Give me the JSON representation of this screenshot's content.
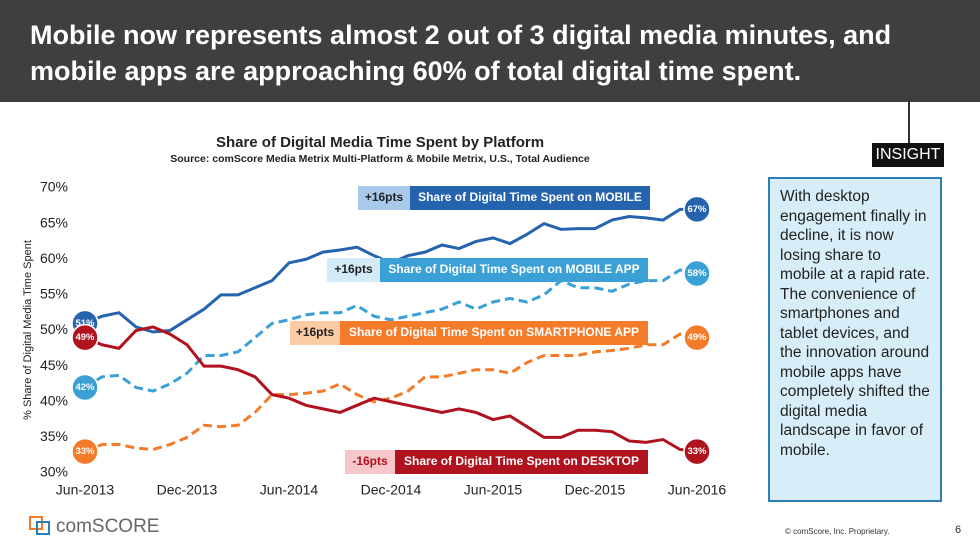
{
  "header": {
    "title_lines": [
      "Mobile now represents almost 2 out of 3 digital media minutes, and",
      "mobile apps are approaching 60% of total digital time spent."
    ]
  },
  "insight": {
    "tag": "INSIGHT",
    "text": "With desktop engagement finally in decline, it is now losing share to mobile at a rapid rate. The convenience of smartphones and tablet devices, and the innovation around mobile apps have completely shifted the digital media landscape in favor of mobile."
  },
  "footer": {
    "logo": "comSCORE",
    "copyright": "© comScore, Inc. Proprietary.",
    "page": "6"
  },
  "chart_data": {
    "type": "line",
    "title": "Share of Digital Media Time Spent by Platform",
    "subtitle": "Source: comScore Media Metrix Multi-Platform & Mobile Metrix, U.S., Total Audience",
    "y_label": "% Share of Digital Media Time Spent",
    "categories": [
      "Jun-2013",
      null,
      null,
      null,
      null,
      null,
      "Dec-2013",
      null,
      null,
      null,
      null,
      null,
      "Jun-2014",
      null,
      null,
      null,
      null,
      null,
      "Dec-2014",
      null,
      null,
      null,
      null,
      null,
      "Jun-2015",
      null,
      null,
      null,
      null,
      null,
      "Dec-2015",
      null,
      null,
      null,
      null,
      null,
      "Jun-2016"
    ],
    "ylim": [
      30,
      70
    ],
    "yticks": [
      {
        "value": 70,
        "label": "70%"
      },
      {
        "value": 65,
        "label": "65%"
      },
      {
        "value": 60,
        "label": "60%"
      },
      {
        "value": 55,
        "label": "55%"
      },
      {
        "value": 50,
        "label": "50%"
      },
      {
        "value": 45,
        "label": "45%"
      },
      {
        "value": 40,
        "label": "40%"
      },
      {
        "value": 35,
        "label": "35%"
      },
      {
        "value": 30,
        "label": "30%"
      }
    ],
    "grid": false,
    "series": [
      {
        "name": "Share of Digital Time Spent on MOBILE",
        "change": "+16pts",
        "color": "#2563ae",
        "change_color": "#a9c9ea",
        "dashed": false,
        "values": [
          51,
          52,
          52.5,
          50.5,
          49.8,
          50,
          51.5,
          53,
          55,
          55,
          56,
          57,
          59.5,
          60,
          61,
          61.3,
          61.7,
          60.5,
          59.5,
          60.5,
          61,
          62,
          61.5,
          62.5,
          63,
          62.2,
          63.5,
          65,
          64.2,
          64.3,
          64.3,
          65.5,
          66,
          65.8,
          65.5,
          67,
          67
        ],
        "value_labels": [
          "51%",
          null,
          null,
          null,
          null,
          null,
          null,
          null,
          null,
          null,
          null,
          null,
          null,
          null,
          null,
          null,
          null,
          null,
          null,
          null,
          null,
          null,
          null,
          null,
          null,
          null,
          null,
          null,
          null,
          null,
          null,
          null,
          null,
          null,
          null,
          null,
          "67%"
        ]
      },
      {
        "name": "Share of Digital Time Spent on MOBILE APP",
        "change": "+16pts",
        "color": "#3aa0d5",
        "change_color": "#d3ebf7",
        "dashed": true,
        "values": [
          42,
          43.5,
          43.7,
          42,
          41.5,
          42.5,
          44,
          46.5,
          46.5,
          47,
          49,
          51,
          51.5,
          52.2,
          52.5,
          52.5,
          53.5,
          52,
          51.5,
          52,
          52.5,
          53,
          54,
          53,
          54,
          54.5,
          54,
          55,
          57,
          56,
          56,
          55.5,
          56.5,
          57,
          57,
          58.5,
          58
        ],
        "value_labels": [
          "42%",
          null,
          null,
          null,
          null,
          null,
          null,
          null,
          null,
          null,
          null,
          null,
          null,
          null,
          null,
          null,
          null,
          null,
          null,
          null,
          null,
          null,
          null,
          null,
          null,
          null,
          null,
          null,
          null,
          null,
          null,
          null,
          null,
          null,
          null,
          null,
          "58%"
        ]
      },
      {
        "name": "Share of Digital Time Spent on SMARTPHONE APP",
        "change": "+16pts",
        "color": "#f47b2a",
        "change_color": "#fbcba4",
        "dashed": true,
        "values": [
          33,
          34,
          34,
          33.5,
          33.3,
          34,
          35,
          36.7,
          36.5,
          36.7,
          38.5,
          41,
          41,
          41.2,
          41.5,
          42.5,
          41,
          40,
          40.5,
          41.5,
          43.5,
          43.5,
          44,
          44.5,
          44.5,
          44,
          45.5,
          46.5,
          46.5,
          46.5,
          47,
          47.2,
          47.5,
          48,
          48,
          49.5,
          49
        ],
        "value_labels": [
          "33%",
          null,
          null,
          null,
          null,
          null,
          null,
          null,
          null,
          null,
          null,
          null,
          null,
          null,
          null,
          null,
          null,
          null,
          null,
          null,
          null,
          null,
          null,
          null,
          null,
          null,
          null,
          null,
          null,
          null,
          null,
          null,
          null,
          null,
          null,
          null,
          "49%"
        ]
      },
      {
        "name": "Share of Digital Time Spent on DESKTOP",
        "change": "-16pts",
        "color": "#b0131e",
        "change_color": "#f5c6ca",
        "dashed": false,
        "values": [
          49,
          48,
          47.5,
          50,
          50.5,
          49.5,
          48,
          45,
          45,
          44.5,
          43.5,
          41,
          40.5,
          39.5,
          39,
          38.5,
          39.5,
          40.5,
          40,
          39.5,
          39,
          38.5,
          39,
          38.5,
          37.5,
          38,
          36.5,
          35,
          35,
          36,
          36,
          35.8,
          34.5,
          34.3,
          34.7,
          33.3,
          33
        ],
        "value_labels": [
          "49%",
          null,
          null,
          null,
          null,
          null,
          null,
          null,
          null,
          null,
          null,
          null,
          null,
          null,
          null,
          null,
          null,
          null,
          null,
          null,
          null,
          null,
          null,
          null,
          null,
          null,
          null,
          null,
          null,
          null,
          null,
          null,
          null,
          null,
          null,
          null,
          "33%"
        ]
      }
    ]
  }
}
